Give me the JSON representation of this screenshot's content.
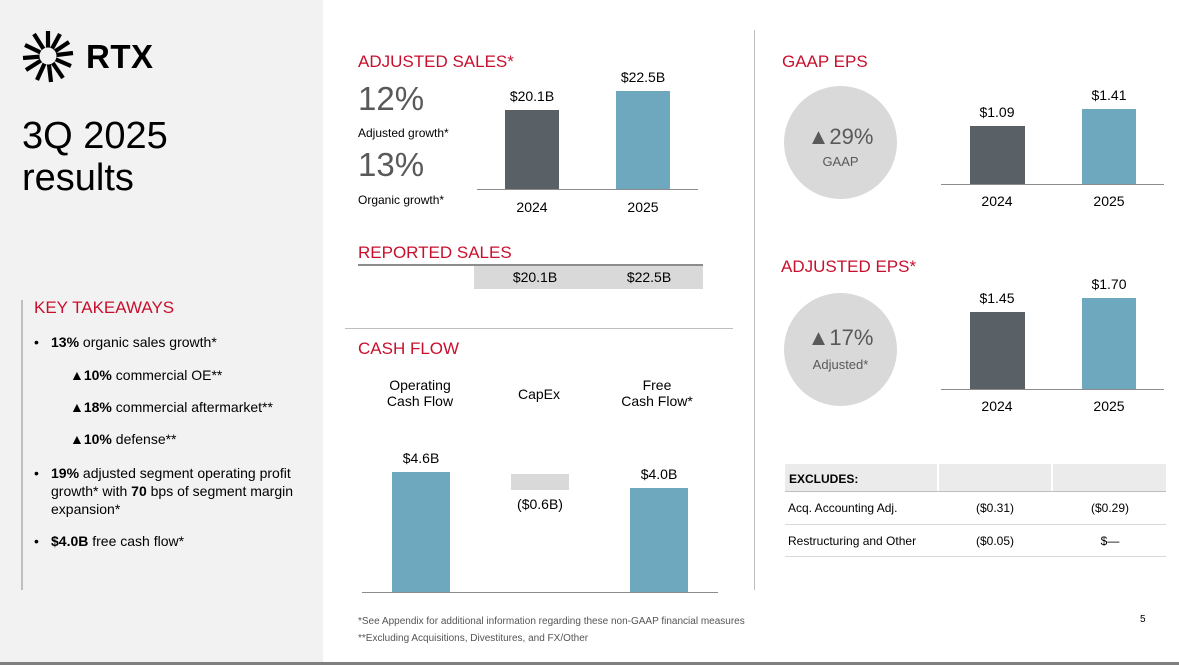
{
  "brand": {
    "name": "RTX"
  },
  "slide": {
    "title_line1": "3Q 2025",
    "title_line2": "results",
    "page_number": "5"
  },
  "key_takeaways": {
    "heading": "KEY TAKEAWAYS",
    "b1_bold": "13%",
    "b1_text": " organic sales growth*",
    "s1_bold": "▲10%",
    "s1_text": " commercial OE**",
    "s2_bold": "▲18%",
    "s2_text": " commercial aftermarket**",
    "s3_bold": "▲10%",
    "s3_text": " defense**",
    "b2_bold1": "19%",
    "b2_text1": " adjusted segment operating profit growth* with ",
    "b2_bold2": "70",
    "b2_text2": " bps of segment margin expansion*",
    "b3_bold": "$4.0B",
    "b3_text": " free cash flow*"
  },
  "adjusted_sales": {
    "heading": "ADJUSTED SALES*",
    "growth1_value": "12%",
    "growth1_label": "Adjusted growth*",
    "growth2_value": "13%",
    "growth2_label": "Organic growth*"
  },
  "reported_sales": {
    "heading": "REPORTED SALES",
    "value_2024": "$20.1B",
    "value_2025": "$22.5B"
  },
  "cash_flow": {
    "heading": "CASH FLOW",
    "col1_l1": "Operating",
    "col1_l2": "Cash Flow",
    "col2": "CapEx",
    "col3_l1": "Free",
    "col3_l2": "Cash Flow*"
  },
  "gaap_eps": {
    "heading": "GAAP EPS",
    "change": "▲29%",
    "change_label": "GAAP"
  },
  "adjusted_eps": {
    "heading": "ADJUSTED EPS*",
    "change": "▲17%",
    "change_label": "Adjusted*"
  },
  "excludes": {
    "heading": "EXCLUDES:",
    "rows": [
      {
        "label": "Acq. Accounting Adj.",
        "v2024": "($0.31)",
        "v2025": "($0.29)"
      },
      {
        "label": "Restructuring and Other",
        "v2024": "($0.05)",
        "v2025": "$—"
      }
    ]
  },
  "footnotes": {
    "f1": "*See Appendix for additional information regarding these non-GAAP financial measures",
    "f2": "**Excluding Acquisitions, Divestitures, and FX/Other"
  },
  "colors": {
    "accent_red": "#c8102e",
    "bar_2024": "#5a6166",
    "bar_2025": "#6ea8bf"
  },
  "chart_data": [
    {
      "type": "bar",
      "title": "ADJUSTED SALES*",
      "categories": [
        "2024",
        "2025"
      ],
      "values": [
        20.1,
        22.5
      ],
      "labels": [
        "$20.1B",
        "$22.5B"
      ],
      "unit": "$B"
    },
    {
      "type": "bar",
      "title": "GAAP EPS",
      "categories": [
        "2024",
        "2025"
      ],
      "values": [
        1.09,
        1.41
      ],
      "labels": [
        "$1.09",
        "$1.41"
      ],
      "unit": "$"
    },
    {
      "type": "bar",
      "title": "ADJUSTED EPS*",
      "categories": [
        "2024",
        "2025"
      ],
      "values": [
        1.45,
        1.7
      ],
      "labels": [
        "$1.45",
        "$1.70"
      ],
      "unit": "$"
    },
    {
      "type": "bar",
      "title": "CASH FLOW",
      "categories": [
        "Operating Cash Flow",
        "CapEx",
        "Free Cash Flow*"
      ],
      "values": [
        4.6,
        -0.6,
        4.0
      ],
      "labels": [
        "$4.6B",
        "($0.6B)",
        "$4.0B"
      ],
      "unit": "$B"
    }
  ]
}
